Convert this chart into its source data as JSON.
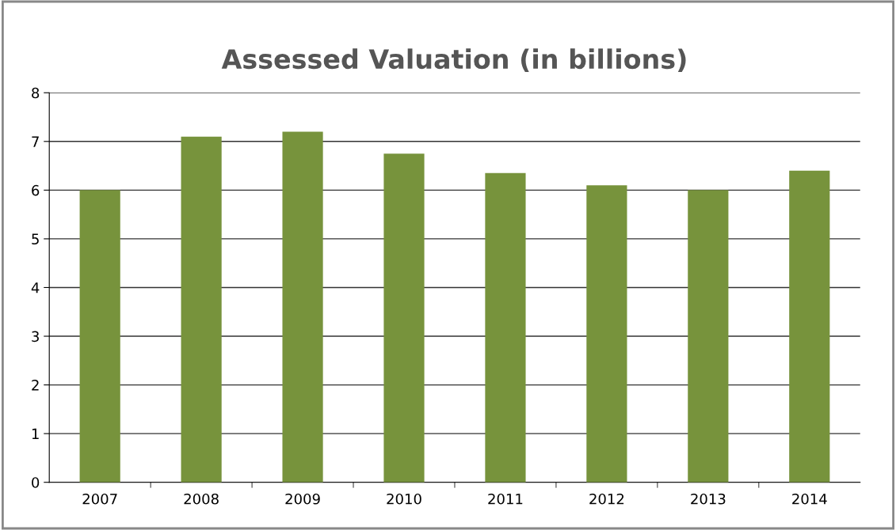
{
  "chart_data": {
    "type": "bar",
    "title": "Assessed Valuation (in billions)",
    "categories": [
      "2007",
      "2008",
      "2009",
      "2010",
      "2011",
      "2012",
      "2013",
      "2014"
    ],
    "values": [
      6.0,
      7.1,
      7.2,
      6.75,
      6.35,
      6.1,
      6.0,
      6.4
    ],
    "color": "#77933c",
    "ylim": [
      0,
      8
    ],
    "yticks": [
      0,
      1,
      2,
      3,
      4,
      5,
      6,
      7,
      8
    ],
    "grid": "y",
    "legend": false
  }
}
